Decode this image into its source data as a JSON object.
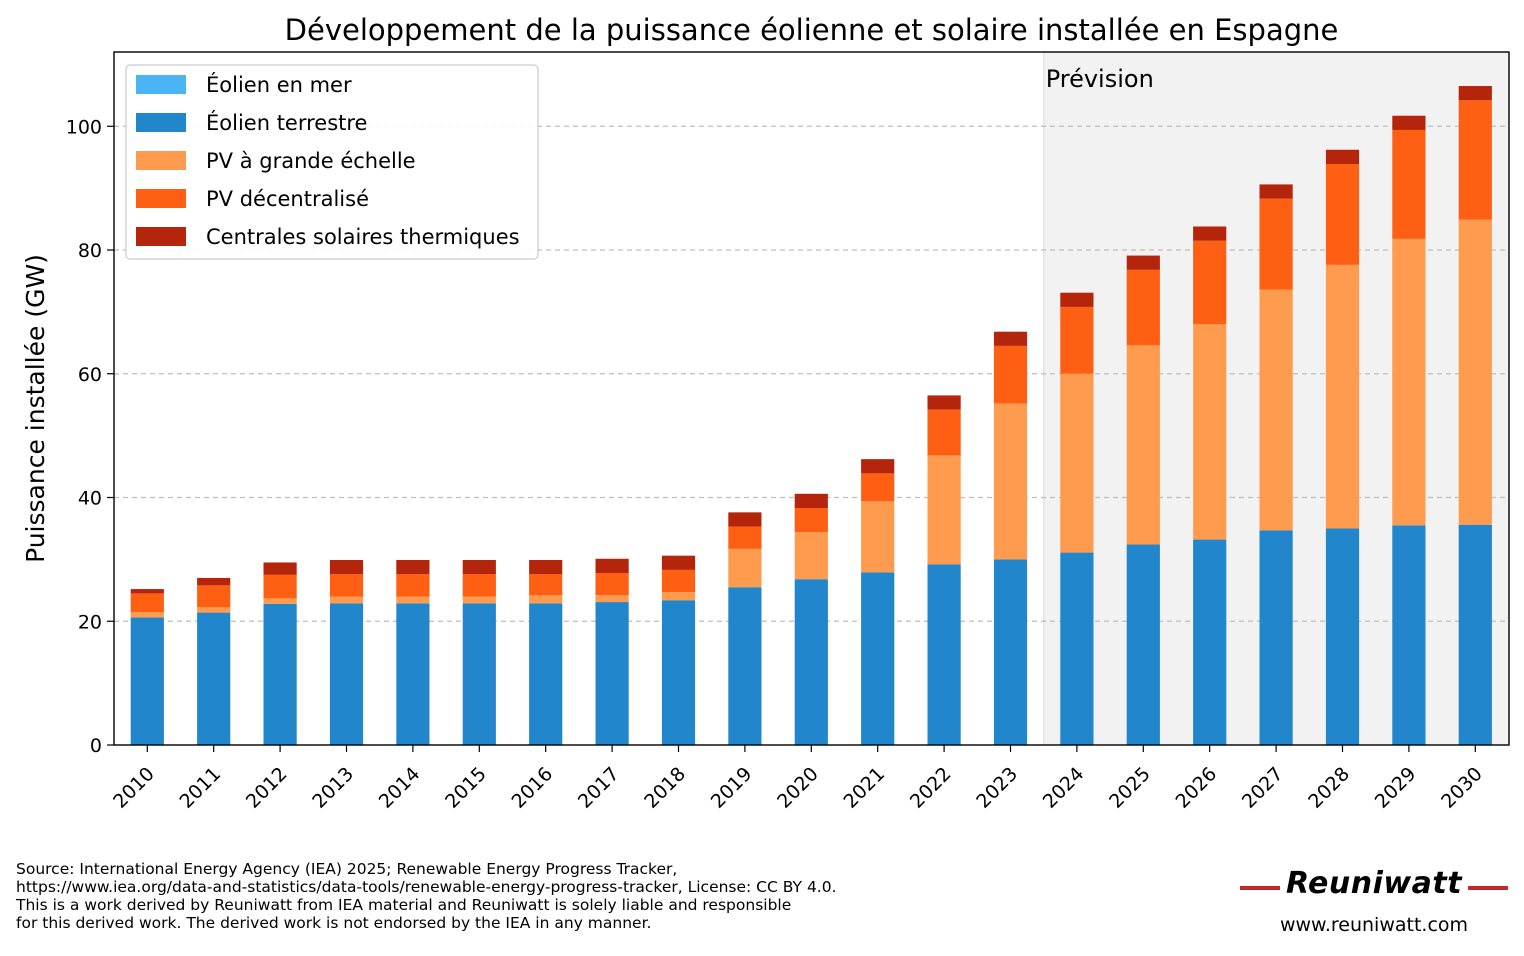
{
  "chart_data": {
    "type": "bar",
    "stacked": true,
    "title": "Développement de la puissance éolienne et solaire installée en Espagne",
    "xlabel": "",
    "ylabel": "Puissance installée (GW)",
    "ylim": [
      0,
      112
    ],
    "yticks": [
      0,
      20,
      40,
      60,
      80,
      100
    ],
    "grid": "y dashed",
    "legend_position": "top-left",
    "forecast_label": "Prévision",
    "forecast_start": "2024",
    "categories": [
      "2010",
      "2011",
      "2012",
      "2013",
      "2014",
      "2015",
      "2016",
      "2017",
      "2018",
      "2019",
      "2020",
      "2021",
      "2022",
      "2023",
      "2024",
      "2025",
      "2026",
      "2027",
      "2028",
      "2029",
      "2030"
    ],
    "series": [
      {
        "name": "Éolien en mer",
        "color": "#4bb4f5",
        "values": [
          0,
          0,
          0,
          0,
          0,
          0,
          0,
          0,
          0,
          0,
          0,
          0,
          0,
          0,
          0,
          0,
          0,
          0,
          0,
          0,
          0
        ]
      },
      {
        "name": "Éolien terrestre",
        "color": "#2286cc",
        "values": [
          20.6,
          21.4,
          22.8,
          22.9,
          22.9,
          22.9,
          22.9,
          23.1,
          23.4,
          25.5,
          26.8,
          27.9,
          29.2,
          30.0,
          31.1,
          32.4,
          33.2,
          34.7,
          35.0,
          35.5,
          35.6
        ]
      },
      {
        "name": "PV à grande échelle",
        "color": "#fe9b4e",
        "values": [
          0.9,
          0.9,
          0.9,
          1.1,
          1.1,
          1.1,
          1.3,
          1.1,
          1.3,
          6.2,
          7.6,
          11.5,
          17.6,
          25.2,
          28.9,
          32.2,
          34.8,
          38.9,
          42.6,
          46.3,
          49.3
        ]
      },
      {
        "name": "PV décentralisé",
        "color": "#fe5f12",
        "values": [
          3.0,
          3.5,
          3.8,
          3.6,
          3.6,
          3.6,
          3.4,
          3.6,
          3.6,
          3.6,
          3.9,
          4.5,
          7.4,
          9.3,
          10.8,
          12.2,
          13.5,
          14.7,
          16.3,
          17.6,
          19.3
        ]
      },
      {
        "name": "Centrales solaires thermiques",
        "color": "#b5250b",
        "values": [
          0.7,
          1.2,
          2.0,
          2.3,
          2.3,
          2.3,
          2.3,
          2.3,
          2.3,
          2.3,
          2.3,
          2.3,
          2.3,
          2.3,
          2.3,
          2.3,
          2.3,
          2.3,
          2.3,
          2.3,
          2.3
        ]
      }
    ]
  },
  "footer": {
    "source_lines": [
      "Source: International Energy Agency (IEA) 2025; Renewable Energy Progress Tracker,",
      "https://www.iea.org/data-and-statistics/data-tools/renewable-energy-progress-tracker, License: CC BY 4.0.",
      "This is a work derived by Reuniwatt from IEA material and Reuniwatt is solely liable and responsible",
      "for this derived work. The derived work is not endorsed by the IEA in any manner."
    ],
    "brand_name": "Reuniwatt",
    "brand_url": "www.reuniwatt.com",
    "brand_color": "#c8262c"
  }
}
